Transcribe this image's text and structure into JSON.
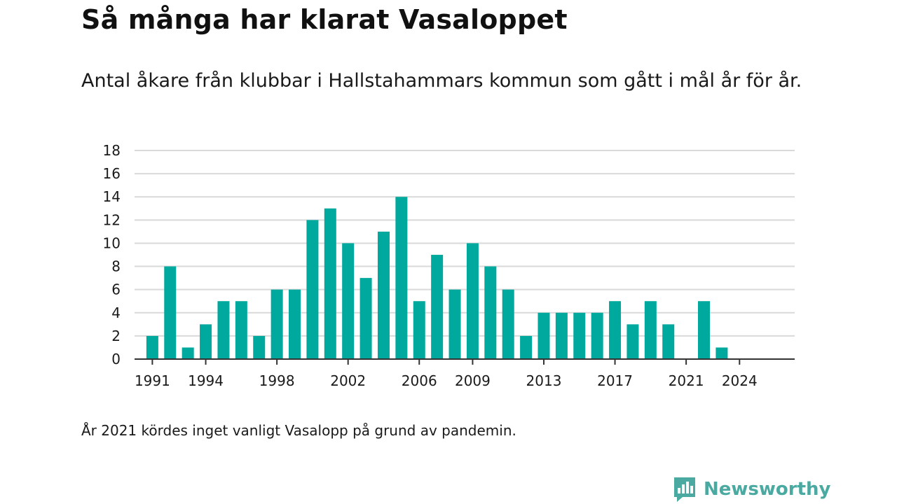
{
  "title": "Så många har klarat Vasaloppet",
  "subtitle": "Antal åkare från klubbar i Hallstahammars kommun som gått i mål år för år.",
  "footnote": "År 2021 kördes inget vanligt Vasalopp på grund av pandemin.",
  "brand": {
    "name": "Newsworthy",
    "icon": "newsworthy-logo-icon",
    "color": "#4aa9a0"
  },
  "colors": {
    "bar": "#00a99d",
    "grid": "#d9d9d9",
    "axis": "#333333"
  },
  "chart_data": {
    "type": "bar",
    "x": [
      1991,
      1992,
      1993,
      1994,
      1995,
      1996,
      1997,
      1998,
      1999,
      2000,
      2001,
      2002,
      2003,
      2004,
      2005,
      2006,
      2007,
      2008,
      2009,
      2010,
      2011,
      2012,
      2013,
      2014,
      2015,
      2016,
      2017,
      2018,
      2019,
      2020,
      2021,
      2022,
      2023,
      2024
    ],
    "values": [
      2,
      8,
      1,
      3,
      5,
      5,
      2,
      6,
      6,
      12,
      13,
      10,
      7,
      11,
      14,
      5,
      9,
      6,
      10,
      8,
      6,
      2,
      4,
      4,
      4,
      4,
      5,
      3,
      5,
      3,
      null,
      5,
      1,
      null
    ],
    "x_tick_labels": [
      "1991",
      "1994",
      "1998",
      "2002",
      "2006",
      "2009",
      "2013",
      "2017",
      "2021",
      "2024"
    ],
    "ylim": [
      0,
      18
    ],
    "y_ticks": [
      0,
      2,
      4,
      6,
      8,
      10,
      12,
      14,
      16,
      18
    ],
    "grid": true,
    "xlabel": "",
    "ylabel": ""
  }
}
